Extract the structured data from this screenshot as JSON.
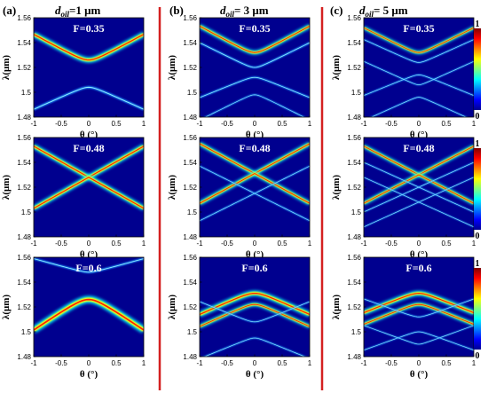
{
  "chart_data": {
    "type": "heatmap",
    "panel_labels": [
      "(a)",
      "(b)",
      "(c)"
    ],
    "column_titles": [
      {
        "prefix": "d",
        "sub": "oil",
        "suffix": "=1 μm",
        "d_oil_um": 1
      },
      {
        "prefix": "d",
        "sub": "oil",
        "suffix": "= 3 μm",
        "d_oil_um": 3
      },
      {
        "prefix": "d",
        "sub": "oil",
        "suffix": "= 5 μm",
        "d_oil_um": 5
      }
    ],
    "row_labels": [
      "F=0.35",
      "F=0.48",
      "F=0.6"
    ],
    "F_values": [
      0.35,
      0.48,
      0.6
    ],
    "xlabel": "θ (°)",
    "ylabel": "λ(μm)",
    "xlim": [
      -1,
      1
    ],
    "ylim": [
      1.48,
      1.56
    ],
    "xticks": [
      "-1",
      "-0.5",
      "0",
      "0.5",
      "1"
    ],
    "yticks": [
      "1.56",
      "1.54",
      "1.52",
      "1.5",
      "1.48"
    ],
    "colorbar": {
      "ticks": [
        "1",
        "0"
      ],
      "range": [
        0,
        1
      ],
      "colormap": "jet"
    },
    "background_color": "#00008f",
    "divider_color": "#d42020"
  }
}
